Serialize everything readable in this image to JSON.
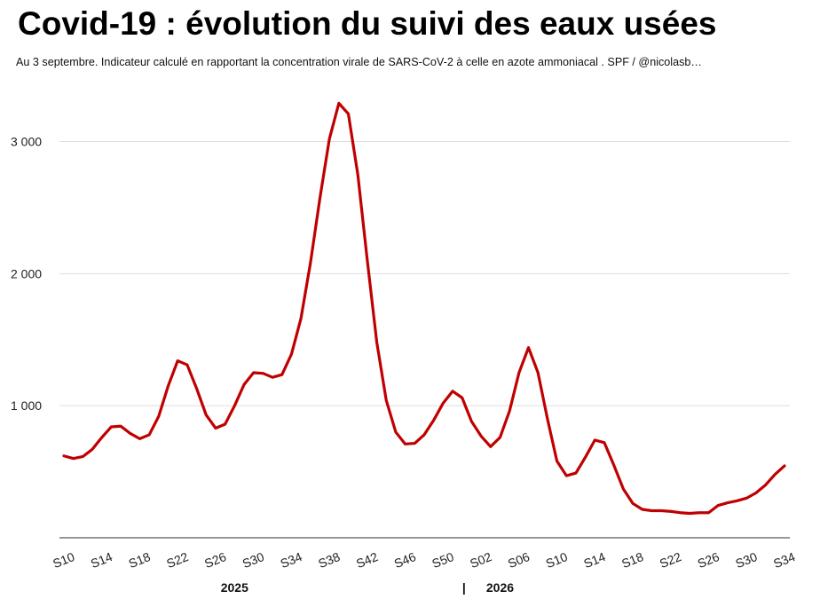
{
  "header": {
    "title": "Covid-19 : évolution du suivi des eaux usées",
    "subtitle": "Au 3 septembre. Indicateur calculé en rapportant la concentration virale de SARS-CoV-2 à celle en azote ammoniacal . SPF / @nicolasb…"
  },
  "chart_data": {
    "type": "line",
    "title": "Covid-19 : évolution du suivi des eaux usées",
    "subtitle": "Au 3 septembre. Indicateur calculé en rapportant la concentration virale de SARS-CoV-2 à celle en azote ammoniacal . SPF / @nicolasb…",
    "ylim": [
      0,
      3400
    ],
    "yticks": [
      1000,
      2000,
      3000
    ],
    "ytick_labels": [
      "1 000",
      "2 000",
      "3 000"
    ],
    "grid": true,
    "legend": "none",
    "line_color": "#c00000",
    "xtick_labels": [
      "S10",
      "S14",
      "S18",
      "S22",
      "S26",
      "S30",
      "S34",
      "S38",
      "S42",
      "S46",
      "S50",
      "S02",
      "S06",
      "S10",
      "S14",
      "S18",
      "S22",
      "S26",
      "S30",
      "S34"
    ],
    "xtick_positions": [
      0,
      4,
      8,
      12,
      16,
      20,
      24,
      28,
      32,
      36,
      40,
      44,
      48,
      52,
      56,
      60,
      64,
      68,
      72,
      76
    ],
    "year_labels": [
      {
        "label": "2025",
        "at": 18
      },
      {
        "label": "|",
        "at": 42.2
      },
      {
        "label": "2026",
        "at": 46
      }
    ],
    "series": [
      {
        "values": [
          620,
          600,
          615,
          670,
          760,
          840,
          845,
          790,
          750,
          780,
          920,
          1150,
          1340,
          1310,
          1130,
          930,
          830,
          860,
          1000,
          1160,
          1250,
          1245,
          1215,
          1235,
          1390,
          1660,
          2080,
          2570,
          3020,
          3290,
          3210,
          2750,
          2100,
          1480,
          1040,
          800,
          710,
          715,
          780,
          890,
          1020,
          1110,
          1060,
          880,
          770,
          690,
          760,
          960,
          1250,
          1440,
          1250,
          900,
          580,
          470,
          490,
          610,
          740,
          720,
          550,
          370,
          260,
          215,
          205,
          205,
          200,
          190,
          185,
          190,
          190,
          245,
          265,
          280,
          300,
          340,
          400,
          480,
          545
        ]
      }
    ]
  }
}
